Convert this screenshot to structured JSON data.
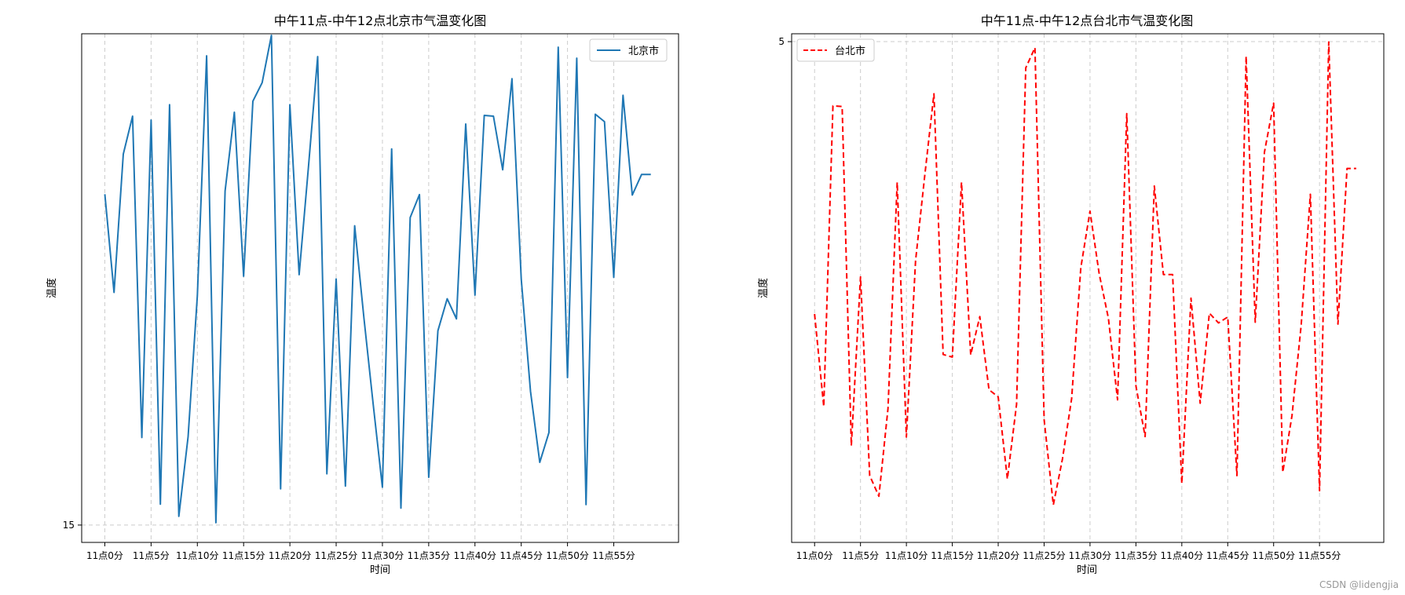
{
  "watermark": "CSDN @lidengjia",
  "chart_data": [
    {
      "type": "line",
      "title": "中午11点-中午12点北京市气温变化图",
      "xlabel": "时间",
      "ylabel": "温度",
      "x": [
        0,
        1,
        2,
        3,
        4,
        5,
        6,
        7,
        8,
        9,
        10,
        11,
        12,
        13,
        14,
        15,
        16,
        17,
        18,
        19,
        20,
        21,
        22,
        23,
        24,
        25,
        26,
        27,
        28,
        29,
        30,
        31,
        32,
        33,
        34,
        35,
        36,
        37,
        38,
        39,
        40,
        41,
        42,
        43,
        44,
        45,
        46,
        47,
        48,
        49,
        50,
        51,
        52,
        53,
        54,
        55,
        56,
        57,
        58,
        59
      ],
      "xtick_values": [
        0,
        5,
        10,
        15,
        20,
        25,
        30,
        35,
        40,
        45,
        50,
        55
      ],
      "xtick_labels": [
        "11点0分",
        "11点5分",
        "11点10分",
        "11点15分",
        "11点20分",
        "11点25分",
        "11点30分",
        "11点35分",
        "11点40分",
        "11点45分",
        "11点50分",
        "11点55分"
      ],
      "ytick_values": [
        15
      ],
      "ytick_labels": [
        "15"
      ],
      "xlim": [
        -2.5,
        62
      ],
      "ylim": [
        14.56,
        27.46
      ],
      "grid": true,
      "legend": "top-right",
      "series": [
        {
          "name": "北京市",
          "color": "#1f77b4",
          "linestyle": "solid",
          "values": [
            23.39,
            20.9,
            24.41,
            25.37,
            17.22,
            25.27,
            15.53,
            25.66,
            15.22,
            17.24,
            20.82,
            26.9,
            15.06,
            23.47,
            25.47,
            21.31,
            25.75,
            26.22,
            27.42,
            15.92,
            25.66,
            21.35,
            24.07,
            26.88,
            16.3,
            21.24,
            15.99,
            22.59,
            20.25,
            18.06,
            15.96,
            24.54,
            15.43,
            22.8,
            23.38,
            16.21,
            19.93,
            20.74,
            20.23,
            25.17,
            20.83,
            25.39,
            25.37,
            24.01,
            26.32,
            21.24,
            18.39,
            16.59,
            17.35,
            27.12,
            18.74,
            26.84,
            15.52,
            25.42,
            25.23,
            21.28,
            25.9,
            23.37,
            23.89,
            23.89
          ]
        }
      ]
    },
    {
      "type": "line",
      "title": "中午11点-中午12点台北市气温变化图",
      "xlabel": "时间",
      "ylabel": "温度",
      "x": [
        0,
        1,
        2,
        3,
        4,
        5,
        6,
        7,
        8,
        9,
        10,
        11,
        12,
        13,
        14,
        15,
        16,
        17,
        18,
        19,
        20,
        21,
        22,
        23,
        24,
        25,
        26,
        27,
        28,
        29,
        30,
        31,
        32,
        33,
        34,
        35,
        36,
        37,
        38,
        39,
        40,
        41,
        42,
        43,
        44,
        45,
        46,
        47,
        48,
        49,
        50,
        51,
        52,
        53,
        54,
        55,
        56,
        57,
        58,
        59
      ],
      "xtick_values": [
        0,
        5,
        10,
        15,
        20,
        25,
        30,
        35,
        40,
        45,
        50,
        55
      ],
      "xtick_labels": [
        "11点0分",
        "11点5分",
        "11点10分",
        "11点15分",
        "11点20分",
        "11点25分",
        "11点30分",
        "11点35分",
        "11点40分",
        "11点45分",
        "11点50分",
        "11点55分"
      ],
      "ytick_values": [
        5
      ],
      "ytick_labels": [
        "5"
      ],
      "xlim": [
        -2.5,
        62
      ],
      "ylim": [
        -8.35,
        5.21
      ],
      "grid": true,
      "legend": "top-left",
      "series": [
        {
          "name": "台北市",
          "color": "#ff0000",
          "linestyle": "dashed",
          "values": [
            -2.26,
            -4.73,
            3.29,
            3.27,
            -5.77,
            -1.27,
            -6.57,
            -7.12,
            -4.78,
            1.25,
            -5.54,
            -0.84,
            1.43,
            3.61,
            -3.34,
            -3.41,
            1.25,
            -3.35,
            -2.33,
            -4.28,
            -4.47,
            -6.66,
            -4.67,
            4.3,
            4.84,
            -5.08,
            -7.35,
            -6.12,
            -4.52,
            -1.03,
            0.48,
            -1.19,
            -2.37,
            -4.55,
            3.08,
            -4.18,
            -5.53,
            1.15,
            -1.21,
            -1.21,
            -6.78,
            -1.84,
            -4.64,
            -2.24,
            -2.5,
            -2.34,
            -6.57,
            4.61,
            -2.48,
            2.05,
            3.36,
            -6.48,
            -4.97,
            -2.56,
            0.93,
            -6.97,
            4.99,
            -2.53,
            1.62,
            1.62
          ]
        }
      ]
    }
  ]
}
